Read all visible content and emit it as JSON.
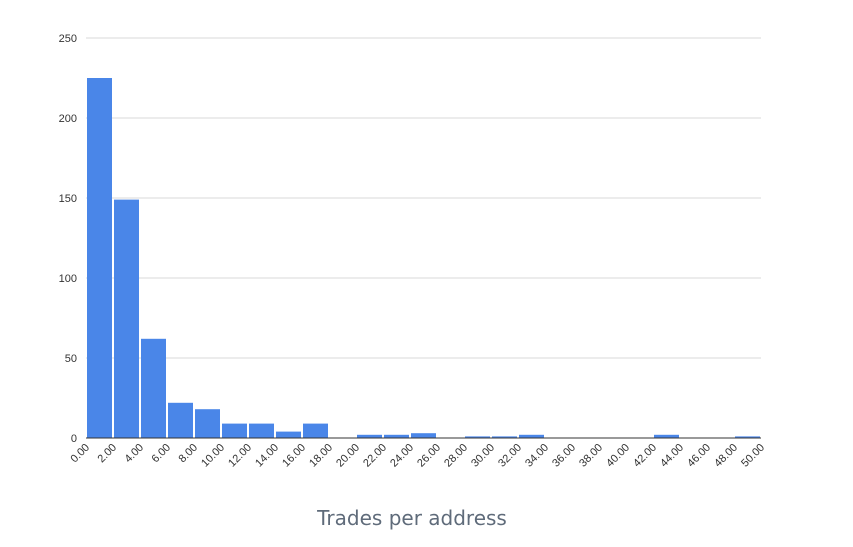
{
  "chart_data": {
    "type": "bar",
    "xlabel": "Trades per address",
    "ylabel": "",
    "ylim": [
      0,
      250
    ],
    "yticks": [
      "0",
      "50",
      "100",
      "150",
      "200",
      "250"
    ],
    "xticks": [
      "0.00",
      "2.00",
      "4.00",
      "6.00",
      "8.00",
      "10.00",
      "12.00",
      "14.00",
      "16.00",
      "18.00",
      "20.00",
      "22.00",
      "24.00",
      "26.00",
      "28.00",
      "30.00",
      "32.00",
      "34.00",
      "36.00",
      "38.00",
      "40.00",
      "42.00",
      "44.00",
      "46.00",
      "48.00",
      "50.00"
    ],
    "values": [
      225,
      149,
      62,
      22,
      18,
      9,
      9,
      4,
      9,
      0,
      2,
      2,
      3,
      0,
      1,
      1,
      2,
      0,
      0,
      0,
      0,
      2,
      0,
      0,
      1
    ],
    "grid": true,
    "bar_color": "#4a86e8",
    "grid_color": "#d9d9d9",
    "axis_color": "#333333"
  }
}
